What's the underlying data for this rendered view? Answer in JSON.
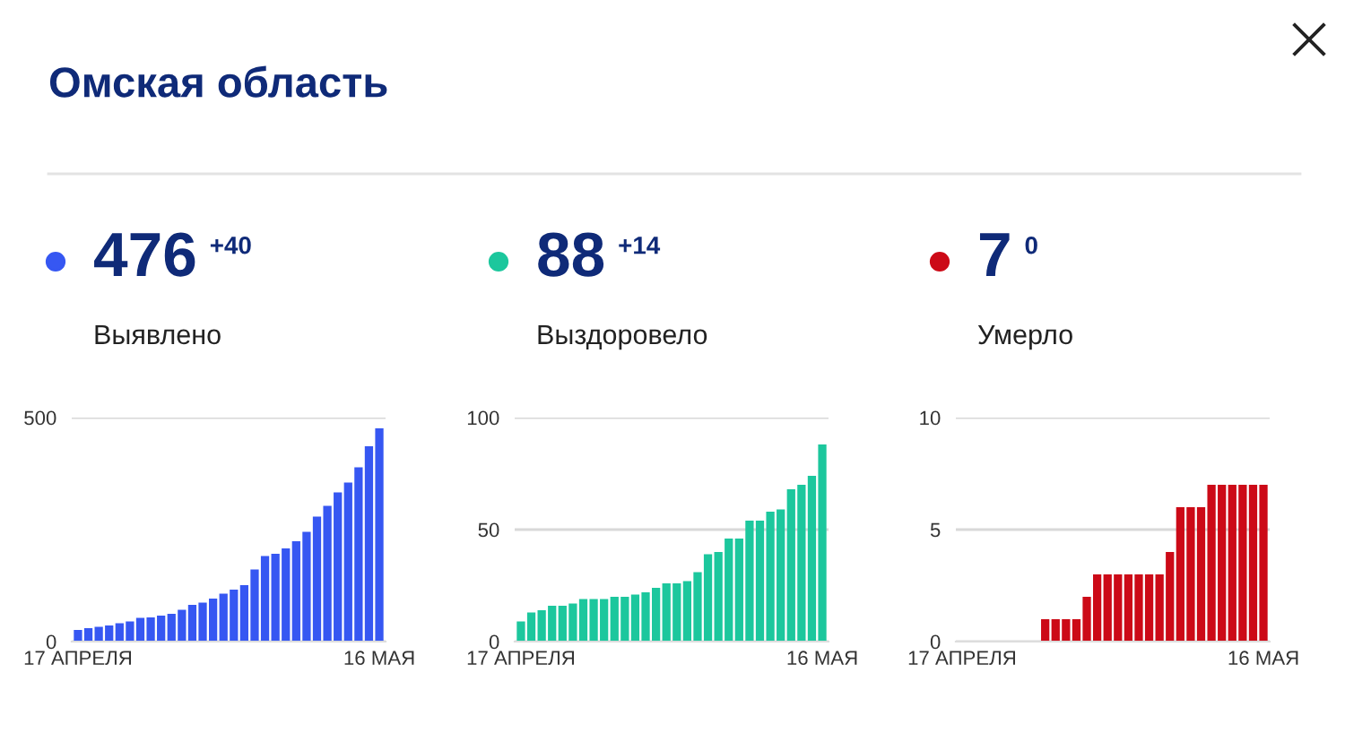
{
  "chart_data": [
    {
      "type": "bar",
      "title": "Выявлено",
      "annotations": [
        "476",
        "+40",
        "Омская область"
      ],
      "color": "#3657f2",
      "categories": [
        "17 АПРЕЛЯ",
        null,
        null,
        null,
        null,
        null,
        null,
        null,
        null,
        null,
        null,
        null,
        null,
        null,
        null,
        null,
        null,
        null,
        null,
        null,
        null,
        null,
        null,
        null,
        null,
        null,
        null,
        null,
        null,
        "16 МАЯ"
      ],
      "values": [
        26,
        30,
        33,
        36,
        41,
        45,
        53,
        54,
        58,
        62,
        71,
        82,
        87,
        96,
        107,
        116,
        126,
        161,
        191,
        196,
        208,
        224,
        245,
        279,
        303,
        333,
        355,
        389,
        436,
        476
      ],
      "ylim": [
        0,
        500
      ],
      "yticks": [
        0,
        500
      ],
      "grid": "y"
    },
    {
      "type": "bar",
      "title": "Выздоровело",
      "annotations": [
        "88",
        "+14"
      ],
      "color": "#1cc79d",
      "categories": [
        "17 АПРЕЛЯ",
        null,
        null,
        null,
        null,
        null,
        null,
        null,
        null,
        null,
        null,
        null,
        null,
        null,
        null,
        null,
        null,
        null,
        null,
        null,
        null,
        null,
        null,
        null,
        null,
        null,
        null,
        null,
        null,
        "16 МАЯ"
      ],
      "values": [
        9,
        13,
        14,
        16,
        16,
        17,
        19,
        19,
        19,
        20,
        20,
        21,
        22,
        24,
        26,
        26,
        27,
        31,
        39,
        40,
        46,
        46,
        54,
        54,
        58,
        59,
        68,
        70,
        74,
        88
      ],
      "ylim": [
        0,
        100
      ],
      "yticks": [
        0,
        50,
        100
      ],
      "grid": "y"
    },
    {
      "type": "bar",
      "title": "Умерло",
      "annotations": [
        "7",
        "0"
      ],
      "color": "#cc0a17",
      "categories": [
        "17 АПРЕЛЯ",
        null,
        null,
        null,
        null,
        null,
        null,
        null,
        null,
        null,
        null,
        null,
        null,
        null,
        null,
        null,
        null,
        null,
        null,
        null,
        null,
        null,
        null,
        null,
        null,
        null,
        null,
        null,
        null,
        "16 МАЯ"
      ],
      "values": [
        0,
        0,
        0,
        0,
        0,
        0,
        0,
        0,
        1,
        1,
        1,
        1,
        2,
        3,
        3,
        3,
        3,
        3,
        3,
        3,
        4,
        6,
        6,
        6,
        7,
        7,
        7,
        7,
        7,
        7
      ],
      "ylim": [
        0,
        10
      ],
      "yticks": [
        0,
        5,
        10
      ],
      "grid": "y"
    }
  ]
}
